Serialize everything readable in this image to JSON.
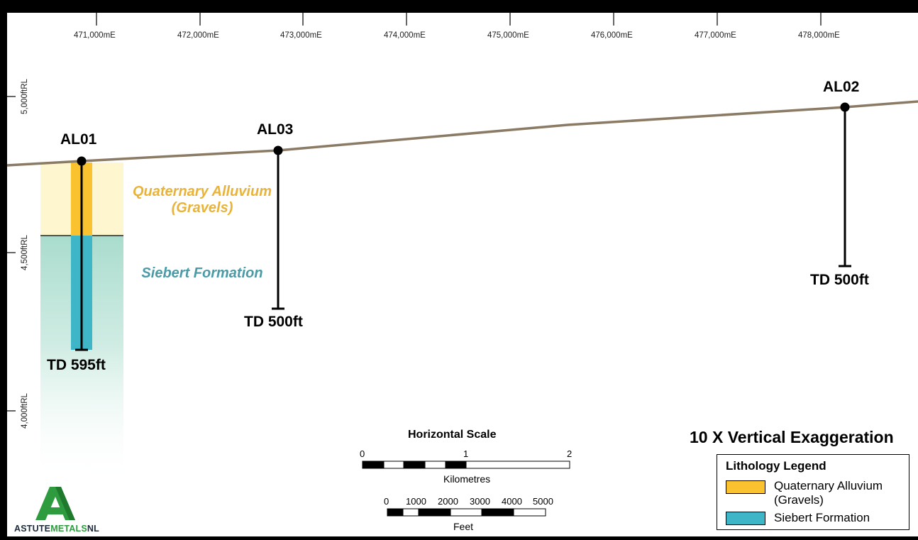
{
  "eastings": [
    "471,000mE",
    "472,000mE",
    "473,000mE",
    "474,000mE",
    "475,000mE",
    "476,000mE",
    "477,000mE",
    "478,000mE"
  ],
  "rl_labels": {
    "rl5000": "5,000ftRL",
    "rl4500": "4,500ftRL",
    "rl4000": "4,000ftRL"
  },
  "holes": {
    "al01": {
      "name": "AL01",
      "td": "TD 595ft"
    },
    "al03": {
      "name": "AL03",
      "td": "TD 500ft"
    },
    "al02": {
      "name": "AL02",
      "td": "TD 500ft"
    }
  },
  "units": {
    "alluvium_line1": "Quaternary Alluvium",
    "alluvium_line2": "(Gravels)",
    "siebert": "Siebert Formation"
  },
  "scale": {
    "horizontal_title": "Horizontal Scale",
    "km_ticks": [
      "0",
      "1",
      "2"
    ],
    "km_unit": "Kilometres",
    "ft_ticks": [
      "0",
      "1000",
      "2000",
      "3000",
      "4000",
      "5000"
    ],
    "ft_unit": "Feet"
  },
  "exaggeration": "10 X Vertical Exaggeration",
  "legend": {
    "title": "Lithology Legend",
    "items": [
      {
        "line1": "Quaternary Alluvium",
        "line2": "(Gravels)",
        "color": "#f9c22e"
      },
      {
        "line1": "Siebert Formation",
        "line2": "",
        "color": "#3fb6c8"
      }
    ]
  },
  "logo": {
    "part1": "ASTUTE",
    "part2": "METALS",
    "part3": "NL"
  },
  "colors": {
    "alluvium": "#f9c22e",
    "alluvium_zone": "#fdf6cf",
    "siebert": "#3fb6c8",
    "siebert_zone": "#a9dccd",
    "topography": "#8b7a64",
    "alluvium_text": "#e9b33a",
    "siebert_text": "#4a9aa7",
    "logo_green": "#2e9b3e"
  }
}
